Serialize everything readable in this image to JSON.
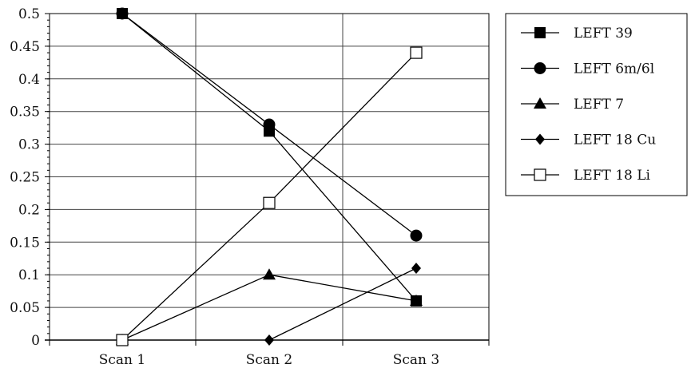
{
  "chart_data": {
    "type": "line",
    "title": "",
    "xlabel": "",
    "ylabel": "",
    "categories": [
      "Scan 1",
      "Scan 2",
      "Scan 3"
    ],
    "ylim": [
      0,
      0.5
    ],
    "y_ticks": [
      "0",
      "0.05",
      "0.1",
      "0.15",
      "0.2",
      "0.25",
      "0.3",
      "0.35",
      "0.4",
      "0.45",
      "0.5"
    ],
    "grid": true,
    "legend_position": "right",
    "series": [
      {
        "name": "LEFT 39",
        "marker": "filled-square",
        "values": [
          0.5,
          0.32,
          0.06
        ]
      },
      {
        "name": "LEFT 6m/6l",
        "marker": "filled-circle",
        "values": [
          0.5,
          0.33,
          0.16
        ]
      },
      {
        "name": "LEFT 7",
        "marker": "filled-triangle",
        "values": [
          0,
          0.1,
          0.06
        ]
      },
      {
        "name": "LEFT 18 Cu",
        "marker": "filled-diamond",
        "values": [
          null,
          0,
          0.11
        ]
      },
      {
        "name": "LEFT 18 Li",
        "marker": "open-square",
        "values": [
          0,
          0.21,
          0.44
        ]
      }
    ],
    "colors": {
      "line": "#000000",
      "grid": "#444444",
      "background": "#ffffff"
    }
  }
}
